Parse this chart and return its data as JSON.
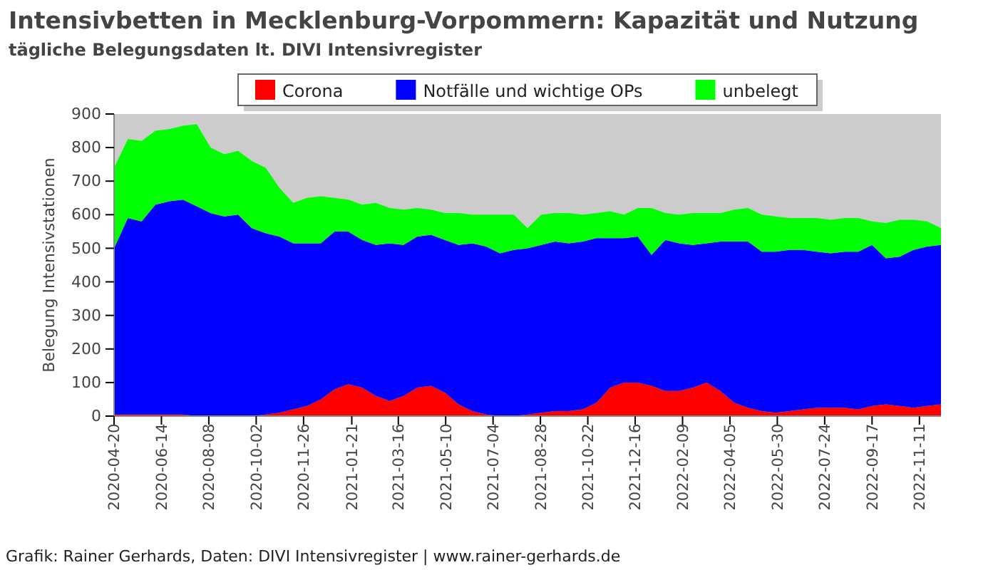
{
  "chart_data": {
    "type": "area",
    "stacked": true,
    "title": "Intensivbetten in Mecklenburg-Vorpommern: Kapazität und Nutzung",
    "subtitle": "tägliche Belegungsdaten lt. DIVI Intensivregister",
    "ylabel": "Belegung Intensivstationen",
    "annotations": [
      "Grafik: Rainer Gerhards, Daten: DIVI Intensivregister | www.rainer-gerhards.de"
    ],
    "x": [
      "2020-04-20",
      "2020-05-06",
      "2020-05-22",
      "2020-06-07",
      "2020-06-23",
      "2020-07-09",
      "2020-07-25",
      "2020-08-10",
      "2020-08-26",
      "2020-09-11",
      "2020-09-27",
      "2020-10-13",
      "2020-10-29",
      "2020-11-14",
      "2020-11-30",
      "2020-12-16",
      "2021-01-01",
      "2021-01-17",
      "2021-02-02",
      "2021-02-18",
      "2021-03-06",
      "2021-03-22",
      "2021-04-07",
      "2021-04-23",
      "2021-05-09",
      "2021-05-25",
      "2021-06-10",
      "2021-06-26",
      "2021-07-12",
      "2021-07-28",
      "2021-08-13",
      "2021-08-29",
      "2021-09-14",
      "2021-09-30",
      "2021-10-16",
      "2021-11-01",
      "2021-11-17",
      "2021-12-03",
      "2021-12-19",
      "2022-01-04",
      "2022-01-20",
      "2022-02-05",
      "2022-02-21",
      "2022-03-09",
      "2022-03-25",
      "2022-04-10",
      "2022-04-26",
      "2022-05-12",
      "2022-05-28",
      "2022-06-13",
      "2022-06-29",
      "2022-07-15",
      "2022-07-31",
      "2022-08-16",
      "2022-09-01",
      "2022-09-17",
      "2022-10-03",
      "2022-10-19",
      "2022-11-04",
      "2022-11-20",
      "2022-12-06"
    ],
    "series": [
      {
        "name": "Corona",
        "color": "#ff0000",
        "values": [
          5,
          5,
          5,
          5,
          5,
          5,
          0,
          0,
          0,
          0,
          0,
          5,
          10,
          20,
          30,
          50,
          80,
          95,
          85,
          60,
          45,
          60,
          85,
          90,
          70,
          35,
          15,
          5,
          0,
          0,
          5,
          10,
          15,
          15,
          20,
          40,
          85,
          100,
          100,
          90,
          75,
          75,
          85,
          100,
          75,
          40,
          25,
          15,
          10,
          15,
          20,
          25,
          25,
          25,
          20,
          30,
          35,
          30,
          25,
          30,
          35
        ]
      },
      {
        "name": "Notfälle und wichtige OPs",
        "color": "#0000ff",
        "values": [
          495,
          585,
          575,
          625,
          635,
          640,
          625,
          605,
          595,
          600,
          560,
          540,
          525,
          495,
          485,
          465,
          470,
          455,
          440,
          450,
          470,
          450,
          450,
          450,
          455,
          475,
          500,
          500,
          485,
          495,
          495,
          500,
          505,
          500,
          500,
          490,
          445,
          430,
          435,
          390,
          450,
          440,
          425,
          415,
          445,
          480,
          495,
          475,
          480,
          480,
          475,
          465,
          460,
          465,
          470,
          480,
          435,
          445,
          470,
          475,
          475
        ]
      },
      {
        "name": "unbelegt",
        "color": "#00ff00",
        "values": [
          240,
          235,
          240,
          220,
          215,
          220,
          245,
          195,
          185,
          190,
          200,
          195,
          145,
          120,
          135,
          140,
          100,
          95,
          105,
          125,
          105,
          105,
          85,
          75,
          80,
          95,
          85,
          95,
          115,
          105,
          60,
          90,
          85,
          90,
          80,
          75,
          80,
          70,
          85,
          140,
          80,
          85,
          95,
          90,
          85,
          95,
          100,
          110,
          105,
          95,
          95,
          100,
          100,
          100,
          100,
          70,
          105,
          110,
          90,
          75,
          50
        ]
      }
    ],
    "xlim": [
      "2020-04-20",
      "2022-12-06"
    ],
    "xticks": [
      "2020-04-20",
      "2020-06-14",
      "2020-08-08",
      "2020-10-02",
      "2020-11-26",
      "2021-01-21",
      "2021-03-16",
      "2021-05-10",
      "2021-07-04",
      "2021-08-28",
      "2021-10-22",
      "2021-12-16",
      "2022-02-09",
      "2022-04-05",
      "2022-05-30",
      "2022-07-24",
      "2022-09-17",
      "2022-11-11"
    ],
    "ylim": [
      0,
      900
    ],
    "yticks": [
      0,
      100,
      200,
      300,
      400,
      500,
      600,
      700,
      800,
      900
    ],
    "legend": "top"
  }
}
